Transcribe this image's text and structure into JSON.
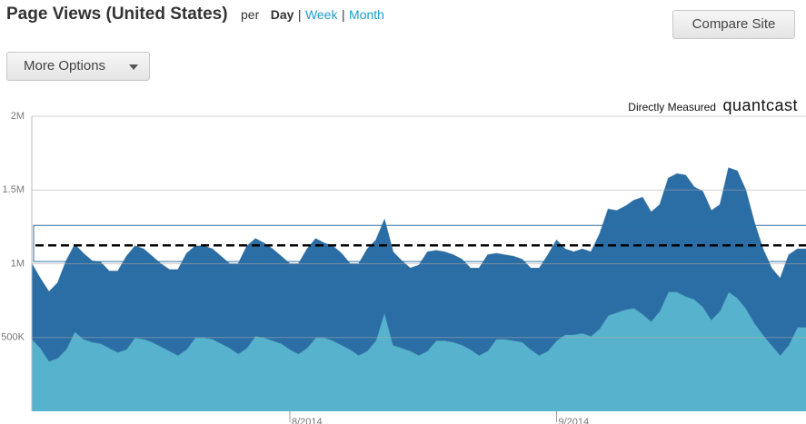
{
  "header": {
    "title": "Page Views (United States)",
    "per": "per",
    "day": "Day",
    "separator": "|",
    "week": "Week",
    "month": "Month"
  },
  "buttons": {
    "compare": "Compare Site",
    "more": "More Options"
  },
  "source": {
    "measured": "Directly Measured",
    "brand": "quantcast"
  },
  "chart_data": {
    "type": "stacked-area",
    "categories": [
      null,
      null,
      null,
      null,
      null,
      null,
      null,
      null,
      null,
      null,
      null,
      null,
      null,
      null,
      null,
      null,
      null,
      null,
      null,
      null,
      null,
      null,
      null,
      null,
      null,
      null,
      null,
      null,
      null,
      null,
      "8/2014",
      null,
      null,
      null,
      null,
      null,
      null,
      null,
      null,
      null,
      null,
      null,
      null,
      null,
      null,
      null,
      null,
      null,
      null,
      null,
      null,
      null,
      null,
      null,
      null,
      null,
      null,
      null,
      null,
      null,
      null,
      "9/2014",
      null,
      null,
      null,
      null,
      null,
      null,
      null,
      null,
      null,
      null,
      null,
      null,
      null,
      null,
      null,
      null,
      null,
      null,
      null,
      null,
      null,
      null,
      null,
      null,
      null,
      null,
      null,
      null,
      null
    ],
    "series": [
      {
        "color": "#57b3cd",
        "values": [
          490000,
          430000,
          340000,
          360000,
          420000,
          540000,
          490000,
          470000,
          460000,
          430000,
          400000,
          420000,
          500000,
          490000,
          470000,
          440000,
          410000,
          380000,
          420000,
          500000,
          500000,
          490000,
          460000,
          430000,
          390000,
          430000,
          510000,
          500000,
          480000,
          460000,
          420000,
          390000,
          430000,
          500000,
          500000,
          480000,
          450000,
          420000,
          380000,
          410000,
          480000,
          670000,
          450000,
          430000,
          410000,
          380000,
          410000,
          480000,
          480000,
          470000,
          450000,
          420000,
          380000,
          410000,
          490000,
          490000,
          480000,
          470000,
          420000,
          380000,
          410000,
          480000,
          520000,
          520000,
          530000,
          510000,
          560000,
          650000,
          670000,
          690000,
          700000,
          660000,
          610000,
          680000,
          810000,
          810000,
          780000,
          760000,
          710000,
          620000,
          680000,
          810000,
          770000,
          700000,
          600000,
          520000,
          450000,
          380000,
          450000,
          570000,
          570000
        ]
      },
      {
        "color": "#2b6ea6",
        "values": [
          510000,
          470000,
          470000,
          510000,
          600000,
          590000,
          580000,
          550000,
          550000,
          520000,
          550000,
          630000,
          620000,
          610000,
          580000,
          560000,
          550000,
          580000,
          650000,
          620000,
          620000,
          610000,
          590000,
          570000,
          610000,
          690000,
          660000,
          640000,
          620000,
          590000,
          580000,
          610000,
          670000,
          670000,
          640000,
          640000,
          620000,
          580000,
          620000,
          690000,
          680000,
          630000,
          630000,
          590000,
          560000,
          610000,
          670000,
          610000,
          600000,
          590000,
          580000,
          550000,
          590000,
          650000,
          580000,
          570000,
          570000,
          560000,
          550000,
          590000,
          650000,
          680000,
          580000,
          560000,
          570000,
          570000,
          640000,
          720000,
          690000,
          700000,
          730000,
          790000,
          740000,
          720000,
          770000,
          800000,
          820000,
          760000,
          780000,
          740000,
          720000,
          840000,
          860000,
          800000,
          680000,
          580000,
          520000,
          520000,
          610000,
          530000,
          530000
        ]
      }
    ],
    "ylim": [
      0,
      2000000
    ],
    "yticks": [
      {
        "value": 500000,
        "label": "500K"
      },
      {
        "value": 1000000,
        "label": "1M"
      },
      {
        "value": 1500000,
        "label": "1.5M"
      },
      {
        "value": 2000000,
        "label": "2M"
      }
    ],
    "grid": true,
    "reference_line": 1125000,
    "reference_band": [
      1015000,
      1260000
    ]
  }
}
